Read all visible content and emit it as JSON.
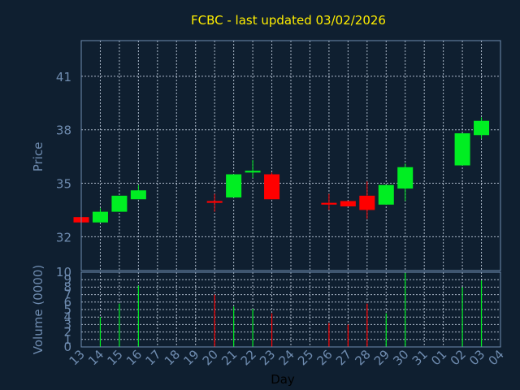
{
  "colors": {
    "background": "#0f1f30",
    "axis": "#6f8cb0",
    "grid": "#c8d4e4",
    "title": "#ffee00",
    "label": "#6f8cb0",
    "xlabel": "#000000",
    "up": "#00ee22",
    "down": "#ff0000"
  },
  "chart_data": [
    {
      "type": "candlestick",
      "title": "FCBC - last updated 03/02/2026",
      "ylabel": "Price",
      "ylim": [
        30.1,
        43.0
      ],
      "yticks": [
        32,
        35,
        38,
        41
      ],
      "x": [
        "13",
        "14",
        "15",
        "16",
        "17",
        "18",
        "19",
        "20",
        "21",
        "22",
        "23",
        "24",
        "25",
        "26",
        "27",
        "28",
        "29",
        "30",
        "31",
        "01",
        "02",
        "03",
        "04"
      ],
      "grid": true,
      "candles": [
        {
          "day": "13",
          "open": 33.1,
          "high": 33.1,
          "low": 32.8,
          "close": 32.8
        },
        {
          "day": "14",
          "open": 32.8,
          "high": 33.6,
          "low": 32.8,
          "close": 33.4
        },
        {
          "day": "15",
          "open": 33.4,
          "high": 34.3,
          "low": 33.4,
          "close": 34.3
        },
        {
          "day": "16",
          "open": 34.1,
          "high": 34.9,
          "low": 34.1,
          "close": 34.6
        },
        {
          "day": "20",
          "open": 34.0,
          "high": 34.4,
          "low": 33.4,
          "close": 33.9
        },
        {
          "day": "21",
          "open": 34.2,
          "high": 35.5,
          "low": 34.2,
          "close": 35.5
        },
        {
          "day": "22",
          "open": 35.6,
          "high": 36.3,
          "low": 35.3,
          "close": 35.7
        },
        {
          "day": "23",
          "open": 35.5,
          "high": 35.6,
          "low": 34.1,
          "close": 34.1
        },
        {
          "day": "26",
          "open": 33.9,
          "high": 34.4,
          "low": 33.5,
          "close": 33.8
        },
        {
          "day": "27",
          "open": 34.0,
          "high": 34.0,
          "low": 33.7,
          "close": 33.7
        },
        {
          "day": "28",
          "open": 34.3,
          "high": 35.1,
          "low": 33.0,
          "close": 33.5
        },
        {
          "day": "29",
          "open": 33.8,
          "high": 34.9,
          "low": 33.8,
          "close": 34.9
        },
        {
          "day": "30",
          "open": 34.7,
          "high": 36.1,
          "low": 34.0,
          "close": 35.9
        },
        {
          "day": "02",
          "open": 36.0,
          "high": 37.8,
          "low": 36.0,
          "close": 37.8
        },
        {
          "day": "03",
          "open": 37.7,
          "high": 38.7,
          "low": 37.5,
          "close": 38.5
        }
      ]
    },
    {
      "type": "bar",
      "ylabel": "Volume (0000)",
      "xlabel": "Day",
      "ylim": [
        0,
        10
      ],
      "yticks": [
        0,
        1,
        2,
        3,
        4,
        5,
        6,
        7,
        8,
        9,
        10
      ],
      "x": [
        "13",
        "14",
        "15",
        "16",
        "17",
        "18",
        "19",
        "20",
        "21",
        "22",
        "23",
        "24",
        "25",
        "26",
        "27",
        "28",
        "29",
        "30",
        "31",
        "01",
        "02",
        "03",
        "04"
      ],
      "grid": true,
      "bars": [
        {
          "day": "14",
          "value": 4.0,
          "direction": "up"
        },
        {
          "day": "15",
          "value": 5.8,
          "direction": "up"
        },
        {
          "day": "16",
          "value": 8.2,
          "direction": "up"
        },
        {
          "day": "20",
          "value": 7.0,
          "direction": "down"
        },
        {
          "day": "21",
          "value": 5.4,
          "direction": "up"
        },
        {
          "day": "22",
          "value": 5.1,
          "direction": "up"
        },
        {
          "day": "23",
          "value": 4.5,
          "direction": "down"
        },
        {
          "day": "26",
          "value": 3.2,
          "direction": "down"
        },
        {
          "day": "27",
          "value": 3.0,
          "direction": "down"
        },
        {
          "day": "28",
          "value": 5.8,
          "direction": "down"
        },
        {
          "day": "29",
          "value": 4.5,
          "direction": "up"
        },
        {
          "day": "30",
          "value": 9.9,
          "direction": "up"
        },
        {
          "day": "02",
          "value": 8.0,
          "direction": "up"
        },
        {
          "day": "03",
          "value": 8.9,
          "direction": "up"
        }
      ]
    }
  ]
}
